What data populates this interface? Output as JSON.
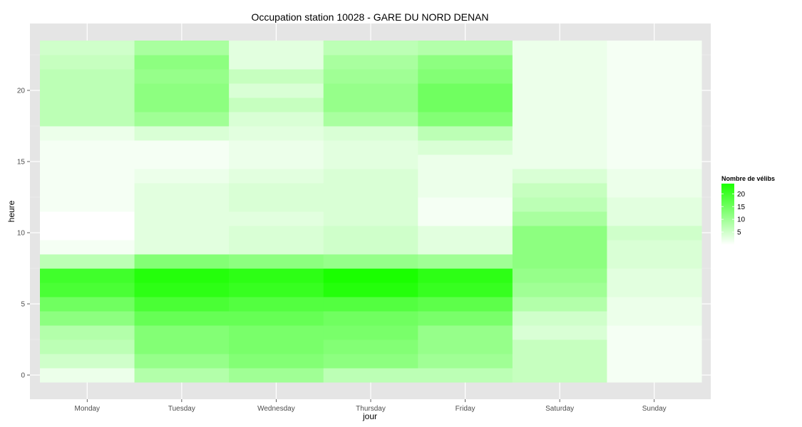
{
  "chart_data": {
    "type": "heatmap",
    "title": "Occupation station 10028 - GARE DU NORD DENAN",
    "xlabel": "jour",
    "ylabel": "heure",
    "categories": [
      "Monday",
      "Tuesday",
      "Wednesday",
      "Thursday",
      "Friday",
      "Saturday",
      "Sunday"
    ],
    "y": [
      0,
      1,
      2,
      3,
      4,
      5,
      6,
      7,
      8,
      9,
      10,
      11,
      12,
      13,
      14,
      15,
      16,
      17,
      18,
      19,
      20,
      21,
      22,
      23
    ],
    "y_ticks": [
      0,
      5,
      10,
      15,
      20
    ],
    "ylim": [
      -0.5,
      23.5
    ],
    "values": [
      [
        2,
        8,
        10,
        7,
        7,
        6,
        1
      ],
      [
        5,
        11,
        13,
        12,
        10,
        6,
        1
      ],
      [
        7,
        13,
        14,
        13,
        11,
        6,
        1
      ],
      [
        8,
        13,
        14,
        14,
        11,
        4,
        1
      ],
      [
        12,
        16,
        16,
        15,
        14,
        5,
        2
      ],
      [
        15,
        19,
        18,
        18,
        17,
        8,
        2
      ],
      [
        19,
        22,
        21,
        23,
        21,
        10,
        3
      ],
      [
        20,
        23,
        22,
        24,
        22,
        11,
        3
      ],
      [
        7,
        13,
        12,
        11,
        10,
        12,
        4
      ],
      [
        1,
        3,
        4,
        5,
        3,
        12,
        4
      ],
      [
        0,
        3,
        4,
        5,
        3,
        12,
        5
      ],
      [
        0,
        3,
        3,
        4,
        1,
        9,
        3
      ],
      [
        1,
        3,
        4,
        4,
        1,
        7,
        3
      ],
      [
        1,
        3,
        4,
        4,
        2,
        6,
        2
      ],
      [
        1,
        2,
        3,
        4,
        2,
        4,
        2
      ],
      [
        1,
        1,
        2,
        3,
        2,
        2,
        1
      ],
      [
        1,
        1,
        2,
        3,
        4,
        2,
        1
      ],
      [
        2,
        4,
        3,
        4,
        7,
        2,
        1
      ],
      [
        7,
        10,
        4,
        9,
        13,
        2,
        1
      ],
      [
        7,
        12,
        6,
        11,
        15,
        2,
        1
      ],
      [
        7,
        12,
        4,
        11,
        15,
        2,
        1
      ],
      [
        7,
        11,
        6,
        10,
        13,
        2,
        1
      ],
      [
        6,
        12,
        3,
        9,
        12,
        2,
        1
      ],
      [
        5,
        9,
        3,
        7,
        8,
        2,
        1
      ]
    ],
    "legend": {
      "title": "Nombre de vélibs",
      "placement": "right",
      "labels": [
        "20",
        "15",
        "10",
        "5"
      ],
      "breaks": [
        20,
        15,
        10,
        5
      ],
      "range": [
        0,
        24
      ]
    },
    "colors": {
      "low": "#ffffff",
      "high": "#1aff00",
      "panel": "#e5e5e5",
      "grid": "#ffffff"
    },
    "grid": true
  }
}
